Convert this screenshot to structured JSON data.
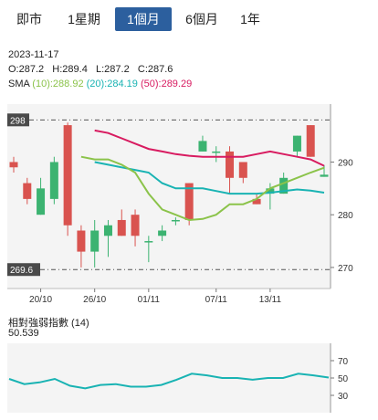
{
  "tabs": [
    {
      "label": "即市",
      "active": false
    },
    {
      "label": "1星期",
      "active": false
    },
    {
      "label": "1個月",
      "active": true
    },
    {
      "label": "6個月",
      "active": false
    },
    {
      "label": "1年",
      "active": false
    }
  ],
  "info": {
    "date": "2023-11-17",
    "ohlc": "O:287.2   H:289.4   L:287.2   C:287.6",
    "sma_label": "SMA",
    "sma10": "(10):288.92",
    "sma20": "(20):284.19",
    "sma50": "(50):289.29"
  },
  "colors": {
    "up": "#3cb371",
    "down": "#d9534f",
    "sma10": "#8bc34a",
    "sma20": "#19b3b3",
    "sma50": "#d81b60",
    "rsi": "#19b3b3",
    "accent": "#2c5f9e"
  },
  "chart_data": [
    {
      "type": "candlestick",
      "x_labels": [
        "20/10",
        "26/10",
        "01/11",
        "07/11",
        "13/11"
      ],
      "y_ticks": [
        270,
        280,
        290
      ],
      "ylim": [
        266,
        301
      ],
      "max_label": "298",
      "min_label": "269.6",
      "max_value": 298,
      "min_value": 269.6,
      "candles": [
        {
          "o": 290,
          "h": 291,
          "l": 288,
          "c": 289
        },
        {
          "o": 286,
          "h": 287,
          "l": 282,
          "c": 283
        },
        {
          "o": 280,
          "h": 287,
          "l": 280,
          "c": 285
        },
        {
          "o": 283,
          "h": 291,
          "l": 282,
          "c": 290
        },
        {
          "o": 297,
          "h": 297.5,
          "l": 276,
          "c": 278
        },
        {
          "o": 277,
          "h": 278,
          "l": 270,
          "c": 273
        },
        {
          "o": 273,
          "h": 279,
          "l": 270,
          "c": 277
        },
        {
          "o": 276,
          "h": 279,
          "l": 272,
          "c": 278
        },
        {
          "o": 279,
          "h": 281,
          "l": 276,
          "c": 276
        },
        {
          "o": 280,
          "h": 281,
          "l": 274,
          "c": 276
        },
        {
          "o": 275,
          "h": 276,
          "l": 271,
          "c": 275
        },
        {
          "o": 276,
          "h": 278,
          "l": 275,
          "c": 277
        },
        {
          "o": 279,
          "h": 279.5,
          "l": 278,
          "c": 279
        },
        {
          "o": 286,
          "h": 286,
          "l": 278,
          "c": 279
        },
        {
          "o": 292,
          "h": 295,
          "l": 292,
          "c": 294
        },
        {
          "o": 292,
          "h": 293,
          "l": 290,
          "c": 292
        },
        {
          "o": 292,
          "h": 293,
          "l": 284,
          "c": 287
        },
        {
          "o": 290,
          "h": 290,
          "l": 286,
          "c": 287
        },
        {
          "o": 283,
          "h": 284,
          "l": 282,
          "c": 282
        },
        {
          "o": 284,
          "h": 286,
          "l": 281,
          "c": 285
        },
        {
          "o": 284,
          "h": 288,
          "l": 284,
          "c": 287
        },
        {
          "o": 292,
          "h": 295,
          "l": 291,
          "c": 295
        },
        {
          "o": 297,
          "h": 297,
          "l": 291,
          "c": 291
        },
        {
          "o": 287.2,
          "h": 289.4,
          "l": 287.2,
          "c": 287.6
        }
      ],
      "sma10": [
        291,
        290.5,
        290.5,
        289.5,
        288,
        284,
        281,
        280,
        279,
        279.2,
        280,
        282,
        282,
        283,
        285,
        286,
        287,
        288,
        288.92
      ],
      "sma20": [
        290,
        289.5,
        289,
        288.5,
        288,
        286,
        285,
        285,
        285,
        284.5,
        284,
        284,
        284,
        284.2,
        284.5,
        284.8,
        284.6,
        284.19
      ],
      "sma50": [
        296,
        295.5,
        294.5,
        293.5,
        292.5,
        292,
        291.5,
        291.2,
        291,
        291,
        291,
        291,
        291.5,
        292,
        291.5,
        291,
        290.5,
        289.29
      ]
    },
    {
      "type": "line",
      "title": "相對強弱指數 (14)",
      "current": "50.539",
      "y_ticks": [
        30,
        50,
        70
      ],
      "ylim": [
        10,
        90
      ],
      "values": [
        49,
        43,
        45,
        49,
        41,
        38,
        42,
        43,
        40,
        40,
        42,
        48,
        55,
        53,
        50,
        50,
        48,
        50,
        50,
        55,
        53,
        50.539
      ]
    }
  ]
}
